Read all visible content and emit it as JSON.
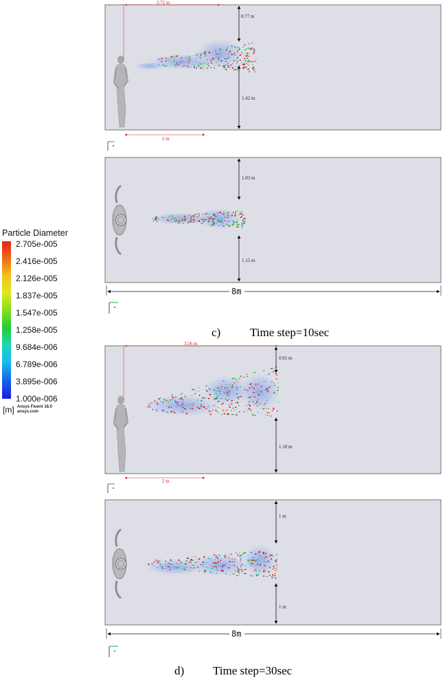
{
  "legend": {
    "title": "Particle Diameter",
    "labels": [
      "2.705e-005",
      "2.416e-005",
      "2.126e-005",
      "1.837e-005",
      "1.547e-005",
      "1.258e-005",
      "9.684e-006",
      "6.789e-006",
      "3.895e-006",
      "1.000e-006"
    ],
    "unit": "[m]",
    "brand_line1": "Ansys Fluent 18.0",
    "brand_line2": "ansys.com"
  },
  "captions": [
    {
      "num": "c)",
      "text": "Time step=10sec"
    },
    {
      "num": "d)",
      "text": "Time step=30sec"
    }
  ],
  "panels": {
    "c_side": {
      "reach": "2.72 m",
      "top_gap": "0.77 m",
      "bottom_gap": "1.42 m",
      "ref": "2 m"
    },
    "c_top": {
      "top_gap": "1.03 m",
      "bottom_gap": "1.15 m",
      "width": "8m"
    },
    "d_side": {
      "reach": "3.56 m",
      "top_gap": "0.65 m",
      "bottom_gap": "1.18 m",
      "ref": "2 m"
    },
    "d_top": {
      "top_gap": "1 m",
      "bottom_gap": "1 m",
      "width": "8m"
    }
  },
  "colors": {
    "domain_fill": "#dedfe6",
    "red": "#d42020",
    "green": "#2fbf3a",
    "cyan": "#22c9e0",
    "blue": "#3a6fe0"
  }
}
